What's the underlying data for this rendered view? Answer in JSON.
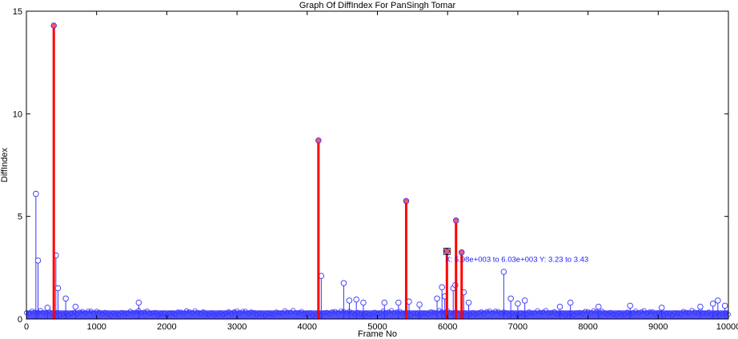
{
  "chart_data": {
    "type": "scatter",
    "title": "Graph Of DiffIndex For PanSingh Tomar",
    "xlabel": "Frame No",
    "ylabel": "DiffIndex",
    "xlim": [
      0,
      10000
    ],
    "ylim": [
      0,
      15
    ],
    "xticks": [
      0,
      1000,
      2000,
      3000,
      4000,
      5000,
      6000,
      7000,
      8000,
      9000,
      10000
    ],
    "yticks": [
      0,
      5,
      10,
      15
    ],
    "grid": false,
    "baseline_band": [
      0.18,
      0.42
    ],
    "colors": {
      "stem": "#3333ff",
      "highlight": "#ff0000",
      "marker_fill": "#ff5555"
    },
    "stems": [
      {
        "x": 135,
        "y": 6.1
      },
      {
        "x": 165,
        "y": 2.85
      },
      {
        "x": 420,
        "y": 3.1
      },
      {
        "x": 450,
        "y": 1.5
      },
      {
        "x": 560,
        "y": 1.0
      },
      {
        "x": 300,
        "y": 0.55
      },
      {
        "x": 700,
        "y": 0.6
      },
      {
        "x": 1600,
        "y": 0.8
      },
      {
        "x": 4200,
        "y": 2.1
      },
      {
        "x": 4520,
        "y": 1.75
      },
      {
        "x": 4600,
        "y": 0.9
      },
      {
        "x": 4700,
        "y": 0.95
      },
      {
        "x": 4800,
        "y": 0.8
      },
      {
        "x": 5100,
        "y": 0.8
      },
      {
        "x": 5300,
        "y": 0.8
      },
      {
        "x": 5450,
        "y": 0.85
      },
      {
        "x": 5600,
        "y": 0.7
      },
      {
        "x": 5850,
        "y": 1.0
      },
      {
        "x": 5920,
        "y": 1.55
      },
      {
        "x": 5960,
        "y": 1.1
      },
      {
        "x": 6080,
        "y": 1.5
      },
      {
        "x": 6110,
        "y": 1.65
      },
      {
        "x": 6230,
        "y": 1.3
      },
      {
        "x": 6300,
        "y": 0.8
      },
      {
        "x": 6800,
        "y": 2.3
      },
      {
        "x": 6900,
        "y": 1.0
      },
      {
        "x": 7000,
        "y": 0.75
      },
      {
        "x": 7100,
        "y": 0.9
      },
      {
        "x": 7600,
        "y": 0.6
      },
      {
        "x": 7750,
        "y": 0.8
      },
      {
        "x": 8150,
        "y": 0.6
      },
      {
        "x": 8600,
        "y": 0.65
      },
      {
        "x": 9050,
        "y": 0.55
      },
      {
        "x": 9600,
        "y": 0.6
      },
      {
        "x": 9780,
        "y": 0.75
      },
      {
        "x": 9850,
        "y": 0.9
      },
      {
        "x": 9950,
        "y": 0.65
      }
    ],
    "highlighted_stems": [
      {
        "x": 390,
        "y": 14.3
      },
      {
        "x": 4160,
        "y": 8.7
      },
      {
        "x": 5410,
        "y": 5.75
      },
      {
        "x": 5990,
        "y": 3.3
      },
      {
        "x": 6120,
        "y": 4.8
      },
      {
        "x": 6200,
        "y": 3.25
      }
    ],
    "annotation": {
      "text": "X: 5.98e+003 to 6.03e+003 Y: 3.23 to 3.43",
      "x": 5990,
      "y": 3.3
    }
  }
}
